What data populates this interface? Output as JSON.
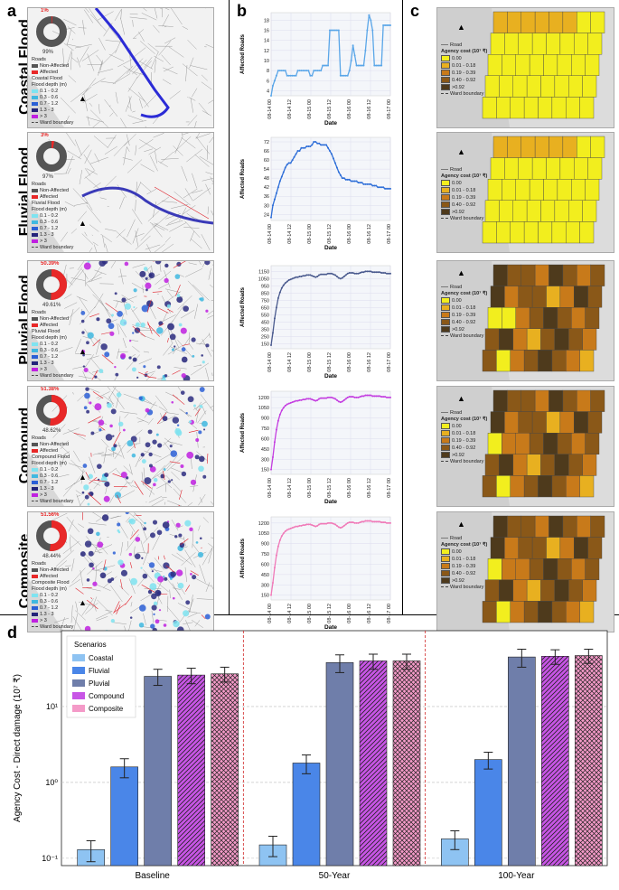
{
  "panel_a": {
    "letter": "a",
    "rows": [
      {
        "label": "Coastal Flood",
        "pct_top": "1%",
        "pct_bottom": "99%",
        "roads": "Roads",
        "non_affected": "Non-Affected",
        "affected": "Affected",
        "scenario": "Coastal Flood",
        "depth": "Flood depth (m)",
        "bins": [
          "0.1 - 0.2",
          "0.3 - 0.6",
          "0.7 - 1.2",
          "1.3 - 3",
          "> 3"
        ],
        "ward": "Ward boundary",
        "color": "#2b2bd6"
      },
      {
        "label": "Fluvial Flood",
        "pct_top": "3%",
        "pct_bottom": "97%",
        "roads": "Roads",
        "non_affected": "Non-Affected",
        "affected": "Affected",
        "scenario": "Fluvial Flood",
        "depth": "Flood depth (m)",
        "bins": [
          "0.1 - 0.2",
          "0.3 - 0.6",
          "0.7 - 1.2",
          "1.3 - 3",
          "> 3"
        ],
        "ward": "Ward boundary",
        "color": "#3a3ab8"
      },
      {
        "label": "Pluvial Flood",
        "pct_top": "50.39%",
        "pct_bottom": "49.61%",
        "roads": "Roads",
        "non_affected": "Non-Affected",
        "affected": "Affected",
        "scenario": "Pluvial Flood",
        "depth": "Flood depth (m)",
        "bins": [
          "0.1 - 0.2",
          "0.3 - 0.6",
          "0.7 - 1.2",
          "1.3 - 3",
          "> 3"
        ],
        "ward": "Ward boundary",
        "color": "#2d2d80"
      },
      {
        "label": "Compound Flood",
        "pct_top": "51.38%",
        "pct_bottom": "48.62%",
        "roads": "Roads",
        "non_affected": "Non-Affected",
        "affected": "Affected",
        "scenario": "Compound Flood",
        "depth": "Flood depth (m)",
        "bins": [
          "0.1 - 0.2",
          "0.3 - 0.6",
          "0.7 - 1.2",
          "1.3 - 3",
          "> 3"
        ],
        "ward": "Ward boundary",
        "color": "#2d2d80"
      },
      {
        "label": "Composite Flood",
        "pct_top": "51.56%",
        "pct_bottom": "48.44%",
        "roads": "Roads",
        "non_affected": "Non-Affected",
        "affected": "Affected",
        "scenario": "Composite Flood",
        "depth": "Flood depth (m)",
        "bins": [
          "0.1 - 0.2",
          "0.3 - 0.6",
          "0.7 - 1.2",
          "1.3 - 3",
          "> 3"
        ],
        "ward": "Ward boundary",
        "color": "#2d2d80"
      }
    ],
    "bin_colors": [
      "#7fe3f0",
      "#40b8e0",
      "#2b5fd6",
      "#24247a",
      "#c020e0"
    ],
    "ring_fractions": [
      0.01,
      0.03,
      0.5039,
      0.5138,
      0.5156
    ]
  },
  "panel_b": {
    "letter": "b",
    "xlabel": "Date",
    "ylabel": "Affected Roads",
    "xticks": [
      "08-14 00",
      "08-14 12",
      "08-15 00",
      "08-15 12",
      "08-16 00",
      "08-16 12",
      "08-17 00"
    ],
    "charts": [
      {
        "color": "#5aa6e8",
        "yticks": [
          "4",
          "6",
          "8",
          "10",
          "12",
          "14",
          "16",
          "18"
        ],
        "ymin": 3,
        "ymax": 19.5,
        "values": [
          3,
          5,
          6,
          7,
          8,
          8,
          8,
          8,
          8,
          7,
          7,
          7,
          7,
          7,
          7,
          8,
          8,
          8,
          8,
          8,
          8,
          8,
          7,
          7,
          8,
          8,
          8,
          8,
          8,
          9,
          9,
          9,
          9,
          16,
          16,
          16,
          16,
          16,
          16,
          7,
          7,
          7,
          7,
          7,
          8,
          10,
          13,
          11,
          9,
          9,
          9,
          9,
          9,
          12,
          16,
          19,
          18,
          16,
          9,
          9,
          9,
          9,
          9,
          17,
          17,
          17,
          17,
          17
        ]
      },
      {
        "color": "#2f6fd8",
        "yticks": [
          "24",
          "30",
          "36",
          "42",
          "48",
          "54",
          "60",
          "66",
          "72"
        ],
        "ymin": 20,
        "ymax": 75,
        "values": [
          22,
          30,
          34,
          38,
          42,
          46,
          49,
          52,
          55,
          57,
          58,
          58,
          60,
          62,
          64,
          66,
          66,
          68,
          68,
          68,
          69,
          69,
          69,
          70,
          72,
          72,
          71,
          71,
          70,
          70,
          70,
          70,
          68,
          66,
          64,
          61,
          58,
          55,
          52,
          50,
          48,
          48,
          47,
          47,
          47,
          46,
          46,
          46,
          46,
          45,
          45,
          45,
          44,
          44,
          44,
          44,
          44,
          43,
          43,
          43,
          42,
          42,
          42,
          42,
          41,
          41,
          41,
          41
        ]
      },
      {
        "color": "#4a5a8e",
        "yticks": [
          "150",
          "250",
          "350",
          "450",
          "550",
          "650",
          "750",
          "850",
          "950",
          "1050",
          "1150"
        ],
        "ymin": 80,
        "ymax": 1230,
        "values": [
          130,
          300,
          500,
          650,
          780,
          860,
          920,
          960,
          990,
          1010,
          1030,
          1040,
          1050,
          1060,
          1070,
          1070,
          1080,
          1080,
          1090,
          1090,
          1100,
          1100,
          1100,
          1090,
          1080,
          1070,
          1080,
          1100,
          1110,
          1110,
          1110,
          1110,
          1120,
          1120,
          1120,
          1110,
          1100,
          1080,
          1060,
          1050,
          1060,
          1080,
          1100,
          1120,
          1130,
          1130,
          1130,
          1120,
          1120,
          1120,
          1130,
          1140,
          1140,
          1150,
          1150,
          1150,
          1150,
          1140,
          1140,
          1140,
          1140,
          1140,
          1130,
          1130,
          1130,
          1120,
          1120,
          1120
        ]
      },
      {
        "color": "#c43ee0",
        "yticks": [
          "150",
          "300",
          "450",
          "600",
          "750",
          "900",
          "1050",
          "1200"
        ],
        "ymin": 80,
        "ymax": 1290,
        "values": [
          150,
          330,
          550,
          730,
          860,
          950,
          1010,
          1050,
          1080,
          1100,
          1110,
          1120,
          1130,
          1140,
          1150,
          1150,
          1160,
          1160,
          1170,
          1170,
          1180,
          1180,
          1180,
          1170,
          1160,
          1150,
          1160,
          1180,
          1190,
          1190,
          1190,
          1190,
          1200,
          1200,
          1200,
          1190,
          1180,
          1160,
          1140,
          1130,
          1140,
          1160,
          1180,
          1200,
          1210,
          1210,
          1210,
          1200,
          1200,
          1200,
          1210,
          1220,
          1220,
          1230,
          1230,
          1230,
          1230,
          1220,
          1220,
          1220,
          1220,
          1220,
          1210,
          1210,
          1210,
          1200,
          1200,
          1200
        ]
      },
      {
        "color": "#f07ab8",
        "yticks": [
          "150",
          "300",
          "450",
          "600",
          "750",
          "900",
          "1050",
          "1200"
        ],
        "ymin": 80,
        "ymax": 1290,
        "values": [
          150,
          330,
          550,
          730,
          860,
          950,
          1010,
          1050,
          1080,
          1100,
          1110,
          1120,
          1130,
          1140,
          1150,
          1150,
          1160,
          1160,
          1170,
          1170,
          1180,
          1180,
          1180,
          1170,
          1160,
          1150,
          1160,
          1180,
          1190,
          1190,
          1190,
          1190,
          1200,
          1200,
          1200,
          1190,
          1180,
          1160,
          1140,
          1130,
          1140,
          1160,
          1180,
          1200,
          1210,
          1210,
          1210,
          1200,
          1200,
          1200,
          1210,
          1220,
          1220,
          1230,
          1230,
          1230,
          1230,
          1220,
          1220,
          1220,
          1220,
          1220,
          1210,
          1210,
          1210,
          1200,
          1200,
          1200
        ]
      }
    ]
  },
  "panel_c": {
    "letter": "c",
    "road": "Road",
    "agency": "Agency cost (10⁷ ₹)",
    "classes": [
      "0.00",
      "0.01 - 0.18",
      "0.19 - 0.39",
      "0.40 - 0.92",
      ">0.92"
    ],
    "class_colors": [
      "#f2ee1e",
      "#e8b020",
      "#c87a1a",
      "#8a5818",
      "#4e3a1c"
    ],
    "ward": "Ward boundary"
  },
  "chart_data": {
    "type": "bar",
    "panel_letter": "d",
    "legend_title": "Scenarios",
    "series": [
      {
        "name": "Coastal",
        "color": "#8ec3f2",
        "values": [
          0.13,
          0.15,
          0.18
        ],
        "err": [
          0.04,
          0.045,
          0.05
        ]
      },
      {
        "name": "Fluvial",
        "color": "#4a86e8",
        "values": [
          1.6,
          1.8,
          2.0
        ],
        "err": [
          0.45,
          0.5,
          0.5
        ]
      },
      {
        "name": "Pluvial",
        "color": "#6f7eaa",
        "values": [
          25,
          38,
          45
        ],
        "err": [
          6,
          10,
          12
        ]
      },
      {
        "name": "Compound",
        "color": "#c855e6",
        "values": [
          26,
          40,
          46
        ],
        "err": [
          6,
          9,
          10
        ]
      },
      {
        "name": "Composite",
        "color": "#f49ac8",
        "values": [
          27,
          40,
          47
        ],
        "err": [
          6,
          9,
          10
        ]
      }
    ],
    "categories": [
      "Baseline",
      "50-Year",
      "100-Year"
    ],
    "ylabel": "Agency Cost - Direct damage (10⁷ ₹)",
    "yscale": "log",
    "ylim": [
      0.08,
      100
    ],
    "yticks": [
      "10⁻¹",
      "10⁰",
      "10¹"
    ],
    "hatches": [
      "none",
      "none",
      "none",
      "diag",
      "cross"
    ]
  }
}
